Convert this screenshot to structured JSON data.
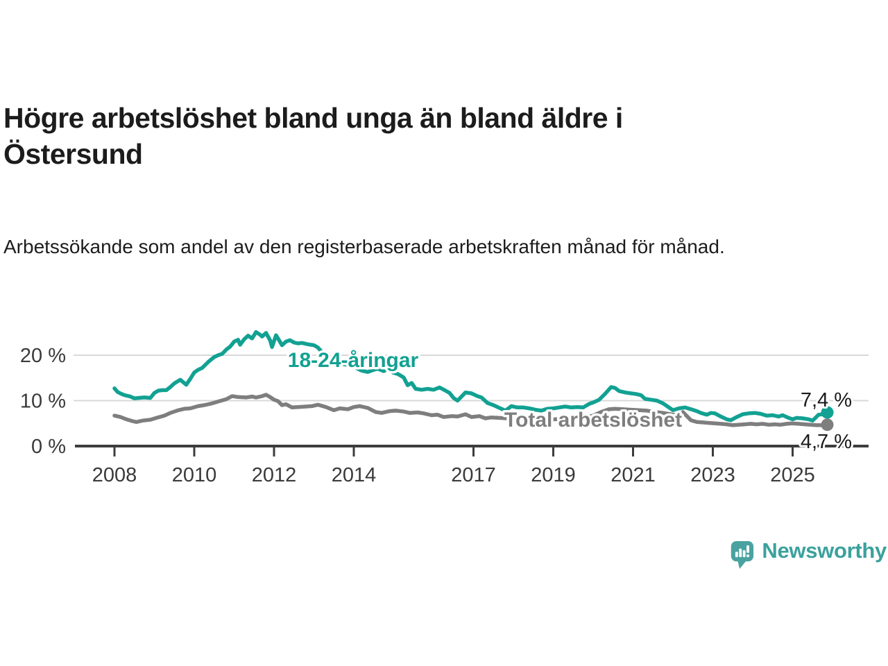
{
  "header": {
    "title": "Högre arbetslöshet bland unga än bland äldre i Östersund",
    "subtitle": "Arbetssökande som andel av den registerbaserade arbetskraften månad för månad."
  },
  "branding": {
    "logo_text": "Newsworthy",
    "logo_color": "#3ba19d",
    "logo_icon": "bar-chart-speech-bubble"
  },
  "chart_data": {
    "type": "line",
    "title": "Högre arbetslöshet bland unga än bland äldre i Östersund",
    "xlabel": "",
    "ylabel": "",
    "grid": "horizontal",
    "legend_position": "inline-labels",
    "x_range": [
      2007.95,
      2026.15
    ],
    "ylim": [
      0,
      27
    ],
    "axis_color": "#3d3d3d",
    "grid_color": "#d8d8d8",
    "tick_label_color": "#3a3a3a",
    "end_label_color": "#1a1a1a",
    "y_ticks": [
      {
        "value": 0,
        "label": "0 %"
      },
      {
        "value": 10,
        "label": "10 %"
      },
      {
        "value": 20,
        "label": "20 %"
      }
    ],
    "x_ticks": [
      {
        "value": 2008,
        "label": "2008"
      },
      {
        "value": 2010,
        "label": "2010"
      },
      {
        "value": 2012,
        "label": "2012"
      },
      {
        "value": 2014,
        "label": "2014"
      },
      {
        "value": 2017,
        "label": "2017"
      },
      {
        "value": 2019,
        "label": "2019"
      },
      {
        "value": 2021,
        "label": "2021"
      },
      {
        "value": 2023,
        "label": "2023"
      },
      {
        "value": 2025,
        "label": "2025"
      }
    ],
    "series": [
      {
        "name": "18-24-åringar",
        "color": "#12a192",
        "end_label": "7,4 %",
        "end_value": 7.4,
        "points": [
          [
            2008.0,
            12.7
          ],
          [
            2008.08,
            11.9
          ],
          [
            2008.17,
            11.5
          ],
          [
            2008.25,
            11.2
          ],
          [
            2008.4,
            10.9
          ],
          [
            2008.5,
            10.5
          ],
          [
            2008.6,
            10.6
          ],
          [
            2008.75,
            10.7
          ],
          [
            2008.9,
            10.6
          ],
          [
            2009.0,
            11.7
          ],
          [
            2009.1,
            12.2
          ],
          [
            2009.2,
            12.3
          ],
          [
            2009.3,
            12.3
          ],
          [
            2009.4,
            13.0
          ],
          [
            2009.5,
            13.8
          ],
          [
            2009.65,
            14.6
          ],
          [
            2009.8,
            13.5
          ],
          [
            2009.9,
            14.8
          ],
          [
            2010.0,
            16.2
          ],
          [
            2010.1,
            16.8
          ],
          [
            2010.2,
            17.2
          ],
          [
            2010.35,
            18.5
          ],
          [
            2010.5,
            19.6
          ],
          [
            2010.6,
            20.0
          ],
          [
            2010.7,
            20.3
          ],
          [
            2010.8,
            21.2
          ],
          [
            2010.9,
            21.9
          ],
          [
            2011.0,
            23.0
          ],
          [
            2011.1,
            23.4
          ],
          [
            2011.15,
            22.3
          ],
          [
            2011.25,
            23.5
          ],
          [
            2011.35,
            24.3
          ],
          [
            2011.45,
            23.7
          ],
          [
            2011.55,
            25.1
          ],
          [
            2011.65,
            24.5
          ],
          [
            2011.7,
            24.1
          ],
          [
            2011.8,
            24.9
          ],
          [
            2011.9,
            23.3
          ],
          [
            2011.95,
            21.8
          ],
          [
            2012.05,
            24.4
          ],
          [
            2012.1,
            23.7
          ],
          [
            2012.2,
            22.2
          ],
          [
            2012.3,
            23.0
          ],
          [
            2012.4,
            23.3
          ],
          [
            2012.5,
            22.8
          ],
          [
            2012.6,
            22.6
          ],
          [
            2012.7,
            22.7
          ],
          [
            2012.85,
            22.4
          ],
          [
            2013.0,
            22.2
          ],
          [
            2013.1,
            21.7
          ],
          [
            2013.25,
            20.2
          ],
          [
            2013.4,
            18.5
          ],
          [
            2013.5,
            18.2
          ],
          [
            2013.6,
            18.4
          ],
          [
            2013.75,
            18.0
          ],
          [
            2013.9,
            17.8
          ],
          [
            2014.0,
            17.9
          ],
          [
            2014.1,
            17.0
          ],
          [
            2014.2,
            16.6
          ],
          [
            2014.35,
            16.3
          ],
          [
            2014.5,
            16.8
          ],
          [
            2014.6,
            17.0
          ],
          [
            2014.75,
            16.5
          ],
          [
            2014.85,
            16.9
          ],
          [
            2015.0,
            16.1
          ],
          [
            2015.1,
            15.9
          ],
          [
            2015.25,
            15.1
          ],
          [
            2015.35,
            13.4
          ],
          [
            2015.45,
            13.9
          ],
          [
            2015.55,
            12.6
          ],
          [
            2015.7,
            12.4
          ],
          [
            2015.85,
            12.6
          ],
          [
            2016.0,
            12.4
          ],
          [
            2016.15,
            12.9
          ],
          [
            2016.3,
            12.2
          ],
          [
            2016.4,
            11.7
          ],
          [
            2016.5,
            10.6
          ],
          [
            2016.6,
            10.0
          ],
          [
            2016.7,
            10.9
          ],
          [
            2016.8,
            11.8
          ],
          [
            2016.95,
            11.6
          ],
          [
            2017.1,
            11.0
          ],
          [
            2017.2,
            10.7
          ],
          [
            2017.35,
            9.5
          ],
          [
            2017.5,
            9.0
          ],
          [
            2017.65,
            8.4
          ],
          [
            2017.8,
            7.8
          ],
          [
            2017.95,
            8.8
          ],
          [
            2018.1,
            8.5
          ],
          [
            2018.25,
            8.5
          ],
          [
            2018.4,
            8.3
          ],
          [
            2018.55,
            8.0
          ],
          [
            2018.7,
            7.8
          ],
          [
            2018.85,
            8.2
          ],
          [
            2019.0,
            8.3
          ],
          [
            2019.15,
            8.5
          ],
          [
            2019.3,
            8.7
          ],
          [
            2019.45,
            8.5
          ],
          [
            2019.6,
            8.6
          ],
          [
            2019.75,
            8.5
          ],
          [
            2019.9,
            9.3
          ],
          [
            2020.0,
            9.6
          ],
          [
            2020.15,
            10.2
          ],
          [
            2020.3,
            11.5
          ],
          [
            2020.45,
            13.0
          ],
          [
            2020.55,
            12.8
          ],
          [
            2020.65,
            12.1
          ],
          [
            2020.8,
            11.8
          ],
          [
            2020.95,
            11.6
          ],
          [
            2021.05,
            11.5
          ],
          [
            2021.2,
            11.2
          ],
          [
            2021.3,
            10.4
          ],
          [
            2021.45,
            10.2
          ],
          [
            2021.6,
            10.0
          ],
          [
            2021.75,
            9.4
          ],
          [
            2021.9,
            8.5
          ],
          [
            2022.0,
            7.9
          ],
          [
            2022.15,
            8.3
          ],
          [
            2022.3,
            8.5
          ],
          [
            2022.45,
            8.1
          ],
          [
            2022.6,
            7.7
          ],
          [
            2022.7,
            7.3
          ],
          [
            2022.85,
            6.9
          ],
          [
            2022.95,
            7.3
          ],
          [
            2023.05,
            7.2
          ],
          [
            2023.2,
            6.5
          ],
          [
            2023.35,
            5.9
          ],
          [
            2023.45,
            5.7
          ],
          [
            2023.6,
            6.4
          ],
          [
            2023.75,
            7.0
          ],
          [
            2023.9,
            7.2
          ],
          [
            2024.05,
            7.3
          ],
          [
            2024.2,
            7.1
          ],
          [
            2024.35,
            6.7
          ],
          [
            2024.5,
            6.8
          ],
          [
            2024.65,
            6.5
          ],
          [
            2024.75,
            6.8
          ],
          [
            2024.9,
            6.2
          ],
          [
            2025.0,
            5.9
          ],
          [
            2025.1,
            6.2
          ],
          [
            2025.25,
            6.1
          ],
          [
            2025.4,
            5.9
          ],
          [
            2025.5,
            5.6
          ],
          [
            2025.65,
            6.9
          ],
          [
            2025.75,
            7.0
          ],
          [
            2025.87,
            7.4
          ]
        ]
      },
      {
        "name": "Total arbetslöshet",
        "color": "#7e7e7e",
        "end_label": "4,7 %",
        "end_value": 4.7,
        "points": [
          [
            2008.0,
            6.7
          ],
          [
            2008.15,
            6.4
          ],
          [
            2008.3,
            5.9
          ],
          [
            2008.45,
            5.5
          ],
          [
            2008.55,
            5.3
          ],
          [
            2008.7,
            5.6
          ],
          [
            2008.9,
            5.8
          ],
          [
            2009.05,
            6.2
          ],
          [
            2009.25,
            6.7
          ],
          [
            2009.4,
            7.3
          ],
          [
            2009.6,
            7.9
          ],
          [
            2009.75,
            8.2
          ],
          [
            2009.9,
            8.3
          ],
          [
            2010.1,
            8.8
          ],
          [
            2010.25,
            9.0
          ],
          [
            2010.45,
            9.4
          ],
          [
            2010.6,
            9.8
          ],
          [
            2010.8,
            10.3
          ],
          [
            2010.95,
            11.0
          ],
          [
            2011.1,
            10.8
          ],
          [
            2011.3,
            10.7
          ],
          [
            2011.45,
            10.9
          ],
          [
            2011.55,
            10.7
          ],
          [
            2011.7,
            11.0
          ],
          [
            2011.8,
            11.3
          ],
          [
            2011.9,
            10.8
          ],
          [
            2012.0,
            10.2
          ],
          [
            2012.1,
            9.9
          ],
          [
            2012.2,
            9.0
          ],
          [
            2012.3,
            9.2
          ],
          [
            2012.45,
            8.5
          ],
          [
            2012.6,
            8.6
          ],
          [
            2012.8,
            8.7
          ],
          [
            2012.95,
            8.8
          ],
          [
            2013.1,
            9.1
          ],
          [
            2013.3,
            8.6
          ],
          [
            2013.5,
            7.9
          ],
          [
            2013.65,
            8.3
          ],
          [
            2013.85,
            8.1
          ],
          [
            2014.0,
            8.6
          ],
          [
            2014.15,
            8.8
          ],
          [
            2014.35,
            8.4
          ],
          [
            2014.55,
            7.5
          ],
          [
            2014.7,
            7.3
          ],
          [
            2014.9,
            7.7
          ],
          [
            2015.05,
            7.8
          ],
          [
            2015.25,
            7.6
          ],
          [
            2015.4,
            7.3
          ],
          [
            2015.6,
            7.4
          ],
          [
            2015.75,
            7.2
          ],
          [
            2015.95,
            6.8
          ],
          [
            2016.1,
            6.9
          ],
          [
            2016.25,
            6.4
          ],
          [
            2016.45,
            6.6
          ],
          [
            2016.6,
            6.5
          ],
          [
            2016.8,
            7.0
          ],
          [
            2016.95,
            6.4
          ],
          [
            2017.15,
            6.6
          ],
          [
            2017.3,
            6.1
          ],
          [
            2017.45,
            6.3
          ],
          [
            2017.65,
            6.2
          ],
          [
            2017.85,
            6.1
          ],
          [
            2018.05,
            6.0
          ],
          [
            2018.3,
            5.9
          ],
          [
            2018.55,
            5.9
          ],
          [
            2018.8,
            5.8
          ],
          [
            2019.05,
            5.9
          ],
          [
            2019.3,
            6.0
          ],
          [
            2019.55,
            6.1
          ],
          [
            2019.8,
            6.3
          ],
          [
            2020.0,
            6.7
          ],
          [
            2020.2,
            7.5
          ],
          [
            2020.4,
            8.1
          ],
          [
            2020.55,
            8.2
          ],
          [
            2020.75,
            8.1
          ],
          [
            2020.95,
            8.0
          ],
          [
            2021.15,
            7.9
          ],
          [
            2021.35,
            7.8
          ],
          [
            2021.55,
            7.5
          ],
          [
            2021.75,
            7.3
          ],
          [
            2021.95,
            7.0
          ],
          [
            2022.1,
            6.8
          ],
          [
            2022.25,
            7.5
          ],
          [
            2022.35,
            6.6
          ],
          [
            2022.45,
            5.7
          ],
          [
            2022.6,
            5.3
          ],
          [
            2022.75,
            5.2
          ],
          [
            2022.9,
            5.1
          ],
          [
            2023.05,
            5.0
          ],
          [
            2023.2,
            4.9
          ],
          [
            2023.35,
            4.8
          ],
          [
            2023.5,
            4.6
          ],
          [
            2023.65,
            4.7
          ],
          [
            2023.8,
            4.8
          ],
          [
            2023.95,
            4.9
          ],
          [
            2024.1,
            4.8
          ],
          [
            2024.25,
            4.9
          ],
          [
            2024.4,
            4.7
          ],
          [
            2024.55,
            4.8
          ],
          [
            2024.7,
            4.7
          ],
          [
            2024.85,
            4.9
          ],
          [
            2025.0,
            5.0
          ],
          [
            2025.15,
            4.9
          ],
          [
            2025.3,
            4.8
          ],
          [
            2025.45,
            4.7
          ],
          [
            2025.6,
            4.6
          ],
          [
            2025.75,
            4.6
          ],
          [
            2025.87,
            4.7
          ]
        ]
      }
    ]
  }
}
